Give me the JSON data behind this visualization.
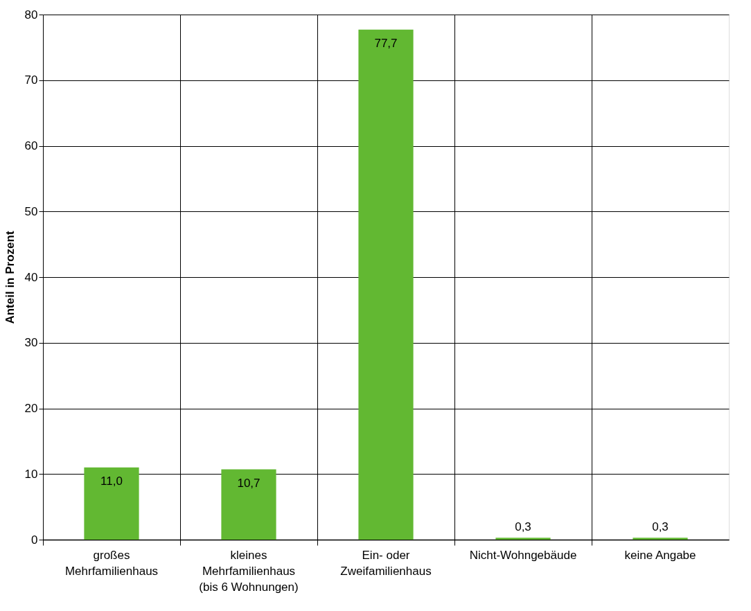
{
  "chart_data": {
    "type": "bar",
    "ylabel": "Anteil in Prozent",
    "categories": [
      "großes\nMehrfamilienhaus",
      "kleines\nMehrfamilienhaus\n(bis 6 Wohnungen)",
      "Ein- oder\nZweifamilienhaus",
      "Nicht-Wohngebäude",
      "keine Angabe"
    ],
    "values": [
      11.0,
      10.7,
      77.7,
      0.3,
      0.3
    ],
    "value_labels": [
      "11,0",
      "10,7",
      "77,7",
      "0,3",
      "0,3"
    ],
    "color": "#62b832",
    "ylim": [
      0,
      80
    ],
    "yticks": [
      0,
      10,
      20,
      30,
      40,
      50,
      60,
      70,
      80
    ],
    "grid": true
  }
}
